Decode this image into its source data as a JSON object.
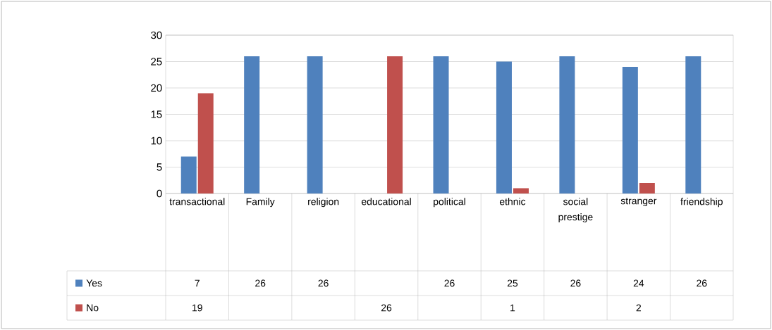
{
  "chart_data": {
    "type": "bar",
    "categories": [
      "transactional",
      "Family",
      "religion",
      "educational",
      "political",
      "ethnic",
      "social prestige",
      "stranger",
      "friendship"
    ],
    "series": [
      {
        "name": "Yes",
        "color": "#4f81bd",
        "values": [
          7,
          26,
          26,
          null,
          26,
          25,
          26,
          24,
          26
        ]
      },
      {
        "name": "No",
        "color": "#c0504d",
        "values": [
          19,
          null,
          null,
          26,
          null,
          1,
          null,
          2,
          null
        ]
      }
    ],
    "ylim": [
      0,
      30
    ],
    "yticks": [
      0,
      5,
      10,
      15,
      20,
      25,
      30
    ],
    "grid": "y",
    "legend": "bottom",
    "data_labels": true
  }
}
